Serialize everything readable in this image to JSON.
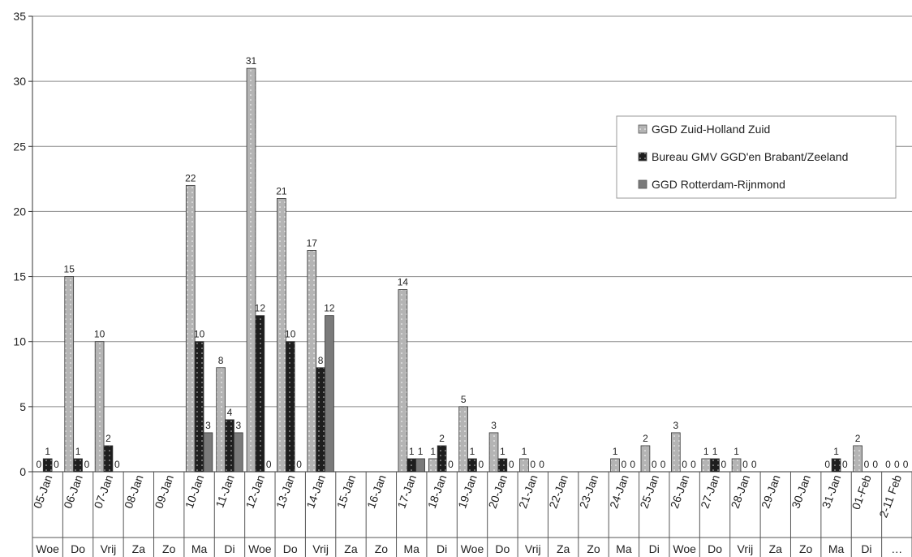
{
  "chart_data": {
    "type": "bar",
    "title": "",
    "xlabel": "",
    "ylabel": "",
    "ylim": [
      0,
      35
    ],
    "yticks": [
      0,
      5,
      10,
      15,
      20,
      25,
      30,
      35
    ],
    "grid": true,
    "legend_position": "top-right",
    "categories": [
      "05-Jan",
      "06-Jan",
      "07-Jan",
      "08-Jan",
      "09-Jan",
      "10-Jan",
      "11-Jan",
      "12-Jan",
      "13-Jan",
      "14-Jan",
      "15-Jan",
      "16-Jan",
      "17-Jan",
      "18-Jan",
      "19-Jan",
      "20-Jan",
      "21-Jan",
      "22-Jan",
      "23-Jan",
      "24-Jan",
      "25-Jan",
      "26-Jan",
      "27-Jan",
      "28-Jan",
      "29-Jan",
      "30-Jan",
      "31-Jan",
      "01-Feb",
      "2-11 Feb"
    ],
    "weekdays": [
      "Woe",
      "Do",
      "Vrij",
      "Za",
      "Zo",
      "Ma",
      "Di",
      "Woe",
      "Do",
      "Vrij",
      "Za",
      "Zo",
      "Ma",
      "Di",
      "Woe",
      "Do",
      "Vrij",
      "Za",
      "Zo",
      "Ma",
      "Di",
      "Woe",
      "Do",
      "Vrij",
      "Za",
      "Zo",
      "Ma",
      "Di",
      "…"
    ],
    "series": [
      {
        "name": "GGD Zuid-Holland Zuid",
        "color": "#b4b4b4",
        "pattern": "dotted",
        "values": [
          0,
          15,
          10,
          null,
          null,
          22,
          8,
          31,
          21,
          17,
          null,
          null,
          14,
          1,
          5,
          3,
          1,
          null,
          null,
          1,
          2,
          3,
          1,
          1,
          null,
          null,
          0,
          2,
          0
        ]
      },
      {
        "name": "Bureau GMV GGD'en Brabant/Zeeland",
        "color": "#1e1e1e",
        "pattern": "dotted",
        "values": [
          1,
          1,
          2,
          null,
          null,
          10,
          4,
          12,
          10,
          8,
          null,
          null,
          1,
          2,
          1,
          1,
          0,
          null,
          null,
          0,
          0,
          0,
          1,
          0,
          null,
          null,
          1,
          0,
          0
        ]
      },
      {
        "name": "GGD Rotterdam-Rijnmond",
        "color": "#7a7a7a",
        "pattern": "solid",
        "values": [
          0,
          0,
          0,
          null,
          null,
          3,
          3,
          0,
          0,
          12,
          null,
          null,
          1,
          0,
          0,
          0,
          0,
          null,
          null,
          0,
          0,
          0,
          0,
          0,
          null,
          null,
          0,
          0,
          0
        ]
      }
    ]
  }
}
